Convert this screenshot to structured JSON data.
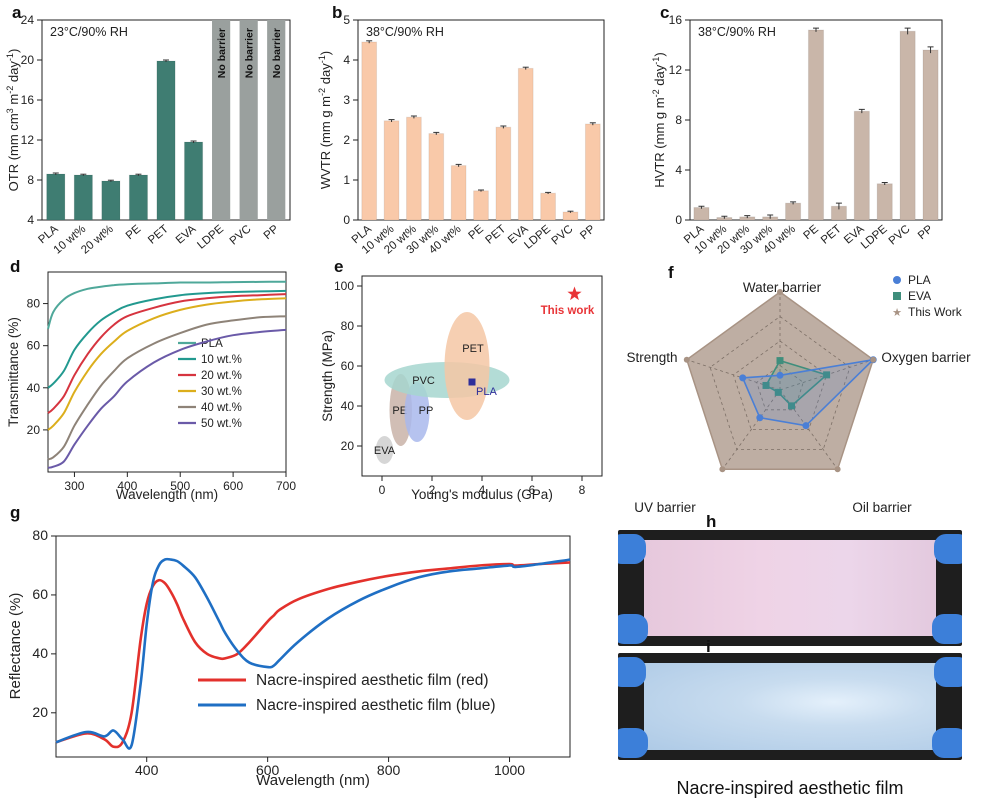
{
  "chart_data": [
    {
      "panel": "a",
      "type": "bar",
      "condition": "23°C/90% RH",
      "ylabel": "OTR (mm cm3 m-2 day-1)",
      "categories": [
        "PLA",
        "10 wt%",
        "20 wt%",
        "PE",
        "PET",
        "EVA",
        "LDPE",
        "PVC",
        "PP"
      ],
      "values": [
        8.6,
        8.5,
        7.9,
        8.5,
        19.9,
        11.8,
        null,
        null,
        null
      ],
      "errors": [
        0.1,
        0.08,
        0.08,
        0.08,
        0.1,
        0.1,
        null,
        null,
        null
      ],
      "bar_labels": [
        "",
        "",
        "",
        "",
        "",
        "",
        "No barrier",
        "No barrier",
        "No barrier"
      ],
      "ylim": [
        4,
        24
      ],
      "yticks": [
        4,
        8,
        12,
        16,
        20,
        24
      ],
      "colors": {
        "bar": "#3f7d72",
        "no_barrier": "#9aa09e"
      }
    },
    {
      "panel": "b",
      "type": "bar",
      "condition": "38°C/90% RH",
      "ylabel": "WVTR (mm g m-2 day-1)",
      "categories": [
        "PLA",
        "10 wt%",
        "20 wt%",
        "30 wt%",
        "40 wt%",
        "PE",
        "PET",
        "EVA",
        "LDPE",
        "PVC",
        "PP"
      ],
      "values": [
        4.45,
        2.48,
        2.57,
        2.16,
        1.36,
        0.73,
        2.32,
        3.79,
        0.67,
        0.2,
        2.4
      ],
      "errors": [
        0.03,
        0.03,
        0.03,
        0.03,
        0.03,
        0.02,
        0.03,
        0.03,
        0.02,
        0.02,
        0.03
      ],
      "ylim": [
        0,
        5
      ],
      "yticks": [
        0,
        1,
        2,
        3,
        4,
        5
      ],
      "colors": {
        "bar": "#f9c9a9"
      }
    },
    {
      "panel": "c",
      "type": "bar",
      "condition": "38°C/90% RH",
      "ylabel": "HVTR (mm g m-2 day-1)",
      "categories": [
        "PLA",
        "10 wt%",
        "20 wt%",
        "30 wt%",
        "40 wt%",
        "PE",
        "PET",
        "EVA",
        "LDPE",
        "PVC",
        "PP"
      ],
      "values": [
        1.0,
        0.2,
        0.25,
        0.25,
        1.35,
        15.2,
        1.1,
        8.7,
        2.9,
        15.1,
        13.6
      ],
      "errors": [
        0.1,
        0.1,
        0.1,
        0.15,
        0.1,
        0.15,
        0.25,
        0.15,
        0.1,
        0.25,
        0.25
      ],
      "ylim": [
        0,
        16
      ],
      "yticks": [
        0,
        4,
        8,
        12,
        16
      ],
      "colors": {
        "bar": "#c9b6a9"
      }
    },
    {
      "panel": "d",
      "type": "line",
      "xlabel": "Wavelength (nm)",
      "ylabel": "Transmittance (%)",
      "xlim": [
        250,
        700
      ],
      "ylim": [
        0,
        95
      ],
      "xticks": [
        300,
        400,
        500,
        600,
        700
      ],
      "yticks": [
        20,
        40,
        60,
        80
      ],
      "x": [
        250,
        260,
        280,
        300,
        325,
        350,
        375,
        400,
        450,
        500,
        550,
        600,
        650,
        700
      ],
      "series": [
        {
          "name": "PLA",
          "color": "#4fa89a",
          "values": [
            68,
            76,
            82,
            85,
            87,
            88,
            88.8,
            89.2,
            89.6,
            90,
            90,
            90.2,
            90.3,
            90.4
          ]
        },
        {
          "name": "10 wt.%",
          "color": "#22998f",
          "values": [
            40,
            42,
            48,
            58,
            66,
            72,
            76,
            79,
            82,
            84,
            85,
            85.5,
            85.8,
            86
          ]
        },
        {
          "name": "20 wt.%",
          "color": "#d6343f",
          "values": [
            28,
            30,
            36,
            46,
            56,
            64,
            70,
            74,
            78,
            81,
            82.5,
            83.5,
            84,
            84.5
          ]
        },
        {
          "name": "30 wt.%",
          "color": "#dcae1c",
          "values": [
            20,
            22,
            28,
            38,
            48,
            56,
            62,
            67,
            73,
            77,
            79.5,
            81,
            82,
            82.5
          ]
        },
        {
          "name": "40 wt.%",
          "color": "#8e8378",
          "values": [
            6,
            7,
            12,
            22,
            32,
            41,
            48,
            54,
            61,
            66,
            70,
            72,
            73.5,
            74
          ]
        },
        {
          "name": "50 wt.%",
          "color": "#6a5aa8",
          "values": [
            2,
            2.5,
            5,
            13,
            22,
            30,
            36,
            43,
            52,
            58,
            62,
            65,
            66.5,
            67.5
          ]
        }
      ]
    },
    {
      "panel": "e",
      "type": "scatter",
      "xlabel": "Young's modulus (GPa)",
      "ylabel": "Strength (MPa)",
      "xlim": [
        -0.8,
        8.8
      ],
      "ylim": [
        5,
        105
      ],
      "xticks": [
        0,
        2,
        4,
        6,
        8
      ],
      "yticks": [
        20,
        40,
        60,
        80,
        100
      ],
      "regions": [
        {
          "name": "EVA",
          "cx": 0.1,
          "cy": 18,
          "rx": 0.35,
          "ry": 7,
          "color": "#cfcfcf"
        },
        {
          "name": "PE",
          "cx": 0.75,
          "cy": 38,
          "rx": 0.45,
          "ry": 18,
          "color": "#c9b3a8"
        },
        {
          "name": "PP",
          "cx": 1.4,
          "cy": 37,
          "rx": 0.5,
          "ry": 15,
          "color": "#a9b9ec"
        },
        {
          "name": "PVC",
          "cx": 2.6,
          "cy": 53,
          "rx": 2.5,
          "ry": 9,
          "color": "#a6d6cf"
        },
        {
          "name": "PET",
          "cx": 3.4,
          "cy": 60,
          "rx": 0.9,
          "ry": 27,
          "color": "#f4c7a5"
        }
      ],
      "points": [
        {
          "name": "PLA",
          "x": 3.6,
          "y": 52,
          "color": "#2e2e9a",
          "marker": "square"
        },
        {
          "name": "This work",
          "x": 7.7,
          "y": 96,
          "color": "#e83336",
          "marker": "star"
        }
      ]
    },
    {
      "panel": "f",
      "type": "radar",
      "axes": [
        "Water barrier",
        "Oxygen barrier",
        "Oil barrier",
        "UV barrier",
        "Strength"
      ],
      "series": [
        {
          "name": "PLA",
          "color": "#4a7fd6",
          "marker": "circle",
          "values": [
            0.15,
            1.0,
            0.45,
            0.35,
            0.4
          ]
        },
        {
          "name": "EVA",
          "color": "#3f8e7c",
          "marker": "square",
          "values": [
            0.3,
            0.5,
            0.2,
            0.03,
            0.15
          ]
        },
        {
          "name": "This Work",
          "color": "#a89384",
          "marker": "star",
          "values": [
            1,
            1,
            1,
            1,
            1
          ]
        }
      ]
    },
    {
      "panel": "g",
      "type": "line",
      "xlabel": "Wavelength (nm)",
      "ylabel": "Reflectance (%)",
      "xlim": [
        250,
        1100
      ],
      "ylim": [
        5,
        80
      ],
      "xticks": [
        400,
        600,
        800,
        1000
      ],
      "yticks": [
        20,
        40,
        60,
        80
      ],
      "x": [
        250,
        300,
        330,
        345,
        360,
        375,
        390,
        400,
        410,
        420,
        430,
        440,
        450,
        460,
        480,
        500,
        520,
        530,
        550,
        570,
        600,
        610,
        620,
        650,
        700,
        750,
        800,
        850,
        900,
        950,
        1000,
        1010,
        1050,
        1100
      ],
      "series": [
        {
          "name": "Nacre-inspired aesthetic film (red)",
          "color": "#e3312c",
          "values": [
            10,
            13,
            11,
            8.5,
            10,
            20,
            45,
            57,
            63,
            65,
            64,
            61,
            57,
            52,
            44,
            40,
            38.5,
            38.5,
            40,
            44,
            51,
            53,
            55,
            58.5,
            62,
            64.5,
            66.5,
            68,
            69,
            70,
            70.5,
            70,
            70.5,
            71
          ]
        },
        {
          "name": "Nacre-inspired aesthetic film (blue)",
          "color": "#1f6fc4",
          "values": [
            10,
            13.5,
            12,
            14,
            11,
            9,
            30,
            50,
            64,
            70,
            72,
            72,
            71.5,
            70,
            66,
            59,
            51,
            47,
            41,
            37,
            35.5,
            36,
            38,
            44,
            52,
            58,
            62.5,
            66,
            68,
            69,
            70,
            69.5,
            70.5,
            72
          ]
        }
      ]
    }
  ],
  "panel_letters": [
    "a",
    "b",
    "c",
    "d",
    "e",
    "f",
    "g",
    "h",
    "i"
  ],
  "labels_e": {
    "this_work": "This work"
  },
  "photos": {
    "caption": "Nacre-inspired aesthetic film"
  }
}
